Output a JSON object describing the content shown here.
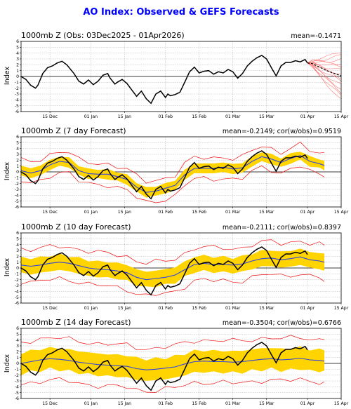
{
  "figure": {
    "suptitle": "AO Index: Observed & GEFS Forecasts",
    "colors": {
      "suptitle": "#0000ff",
      "observed": "#000000",
      "spread": "#ffd400",
      "mean_forecast": "#3344dd",
      "extremes": "#ee1111",
      "ensemble": "#ff5555",
      "grid": "#b0b0b0"
    }
  },
  "chart_data": [
    {
      "type": "line",
      "title": "1000mb Z (Obs: 03Dec2025 - 01Apr2026)",
      "stat": "mean=-0.1471",
      "ylabel": "Index",
      "ylim": [
        -6,
        6
      ],
      "yticks": [
        "6",
        "5",
        "4",
        "3",
        "2",
        "1",
        "0",
        "-1",
        "-2",
        "-3",
        "-4",
        "-5",
        "-6"
      ],
      "xticks": [
        "15 Dec",
        "01 Jan",
        "15 Jan",
        "01 Feb",
        "15 Feb",
        "01 Mar",
        "15 Mar",
        "01 Apr",
        "15 Apr"
      ],
      "grid": true,
      "x_unit": "days from 03 Dec 2025",
      "series": [
        {
          "role": "observed",
          "x": [
            0,
            2,
            4,
            6,
            7,
            9,
            11,
            13,
            15,
            17,
            19,
            21,
            22,
            24,
            26,
            28,
            30,
            32,
            34,
            36,
            37,
            38,
            39,
            40,
            42,
            44,
            46,
            48,
            50,
            52,
            54,
            56,
            58,
            60,
            61,
            62,
            64,
            66,
            68,
            70,
            72,
            74,
            76,
            78,
            80,
            82,
            84,
            86,
            88,
            90,
            92,
            94,
            96,
            98,
            100,
            102,
            104,
            106,
            108,
            110,
            112,
            114,
            116,
            118,
            119
          ],
          "y": [
            0.0,
            -0.5,
            -1.5,
            -2.0,
            -1.5,
            0.5,
            1.5,
            1.8,
            2.3,
            2.6,
            2.0,
            1.0,
            0.5,
            -0.8,
            -1.3,
            -0.6,
            -1.4,
            -0.8,
            0.2,
            0.5,
            -0.3,
            -0.8,
            -1.3,
            -1.0,
            -0.5,
            -1.2,
            -2.3,
            -3.4,
            -2.5,
            -3.8,
            -4.6,
            -3.0,
            -2.5,
            -3.6,
            -3.0,
            -3.3,
            -3.1,
            -2.7,
            -1.0,
            0.8,
            1.6,
            0.6,
            0.9,
            1.0,
            0.4,
            0.8,
            0.6,
            1.2,
            0.8,
            -0.3,
            0.5,
            1.8,
            2.6,
            3.2,
            3.6,
            3.0,
            1.5,
            0.1,
            1.8,
            2.4,
            2.4,
            2.7,
            2.5,
            2.9,
            2.3
          ]
        },
        {
          "role": "ensemble_forecast",
          "x": [
            119,
            121,
            123,
            125,
            127,
            129,
            131,
            133
          ],
          "y": [
            2.3,
            2.2,
            1.8,
            1.4,
            1.0,
            0.7,
            0.4,
            0.1
          ]
        }
      ]
    },
    {
      "type": "line",
      "title": "1000mb Z (7 day Forecast)",
      "stat": "mean=-0.2149; cor(w/obs)=0.9519",
      "ylabel": "Index",
      "ylim": [
        -6,
        6
      ],
      "yticks": [
        "6",
        "5",
        "4",
        "3",
        "2",
        "1",
        "0",
        "-1",
        "-2",
        "-3",
        "-4",
        "-5",
        "-6"
      ],
      "xticks": [
        "15 Dec",
        "01 Jan",
        "15 Jan",
        "01 Feb",
        "15 Feb",
        "01 Mar",
        "15 Mar",
        "01 Apr",
        "15 Apr"
      ],
      "grid": true,
      "x_unit": "days from 03 Dec 2025",
      "forecast_x": [
        0,
        4,
        8,
        12,
        16,
        20,
        24,
        28,
        32,
        36,
        40,
        44,
        48,
        52,
        56,
        60,
        64,
        68,
        72,
        76,
        80,
        84,
        88,
        92,
        96,
        100,
        104,
        108,
        112,
        116,
        120,
        124,
        126
      ],
      "forecast_mean": [
        0.2,
        -0.2,
        0.2,
        1.2,
        1.8,
        1.6,
        0.2,
        -0.3,
        -0.4,
        -0.4,
        -0.8,
        -1.3,
        -2.6,
        -3.5,
        -3.3,
        -2.8,
        -2.3,
        -0.5,
        0.6,
        0.6,
        0.6,
        0.8,
        0.5,
        0.7,
        1.8,
        2.6,
        2.2,
        1.6,
        2.3,
        2.8,
        1.8,
        1.4,
        1.1
      ],
      "spread_half_width": 0.8,
      "extreme_offset": 1.8,
      "observed_x": [
        0,
        2,
        4,
        6,
        7,
        9,
        11,
        13,
        15,
        17,
        19,
        21,
        22,
        24,
        26,
        28,
        30,
        32,
        34,
        36,
        37,
        38,
        39,
        40,
        42,
        44,
        46,
        48,
        50,
        52,
        54,
        56,
        58,
        60,
        61,
        62,
        64,
        66,
        68,
        70,
        72,
        74,
        76,
        78,
        80,
        82,
        84,
        86,
        88,
        90,
        92,
        94,
        96,
        98,
        100,
        102,
        104,
        106,
        108,
        110,
        112,
        114,
        116,
        118,
        119
      ],
      "observed_y": [
        0.0,
        -0.5,
        -1.5,
        -2.0,
        -1.5,
        0.5,
        1.5,
        1.8,
        2.3,
        2.6,
        2.0,
        1.0,
        0.5,
        -0.8,
        -1.3,
        -0.6,
        -1.4,
        -0.8,
        0.2,
        0.5,
        -0.3,
        -0.8,
        -1.3,
        -1.0,
        -0.5,
        -1.2,
        -2.3,
        -3.4,
        -2.5,
        -3.8,
        -4.6,
        -3.0,
        -2.5,
        -3.6,
        -3.0,
        -3.3,
        -3.1,
        -2.7,
        -1.0,
        0.8,
        1.6,
        0.6,
        0.9,
        1.0,
        0.4,
        0.8,
        0.6,
        1.2,
        0.8,
        -0.3,
        0.5,
        1.8,
        2.6,
        3.2,
        3.6,
        3.0,
        1.5,
        0.1,
        1.8,
        2.4,
        2.4,
        2.7,
        2.5,
        2.9,
        2.3
      ]
    },
    {
      "type": "line",
      "title": "1000mb Z (10 day Forecast)",
      "stat": "mean=-0.2111; cor(w/obs)=0.8397",
      "ylabel": "Index",
      "ylim": [
        -6,
        6
      ],
      "yticks": [
        "6",
        "5",
        "4",
        "3",
        "2",
        "1",
        "0",
        "-1",
        "-2",
        "-3",
        "-4",
        "-5",
        "-6"
      ],
      "xticks": [
        "15 Dec",
        "01 Jan",
        "15 Jan",
        "01 Feb",
        "15 Feb",
        "01 Mar",
        "15 Mar",
        "01 Apr",
        "15 Apr"
      ],
      "grid": true,
      "x_unit": "days from 03 Dec 2025",
      "forecast_x": [
        0,
        4,
        8,
        12,
        16,
        20,
        24,
        28,
        32,
        36,
        40,
        44,
        48,
        52,
        56,
        60,
        64,
        68,
        72,
        76,
        80,
        84,
        88,
        92,
        96,
        100,
        104,
        108,
        112,
        116,
        120,
        124,
        126
      ],
      "forecast_mean": [
        0.5,
        0.3,
        0.5,
        0.8,
        1.0,
        0.8,
        0.4,
        0.0,
        -0.2,
        -0.3,
        -0.5,
        -0.8,
        -1.6,
        -2.0,
        -1.8,
        -1.6,
        -1.2,
        -0.3,
        0.6,
        0.8,
        0.6,
        0.6,
        0.5,
        0.7,
        1.2,
        1.6,
        1.7,
        1.4,
        1.6,
        1.9,
        1.4,
        1.2,
        1.0
      ],
      "spread_half_width": 1.3,
      "extreme_offset": 2.8,
      "observed_x": [
        0,
        2,
        4,
        6,
        7,
        9,
        11,
        13,
        15,
        17,
        19,
        21,
        22,
        24,
        26,
        28,
        30,
        32,
        34,
        36,
        37,
        38,
        39,
        40,
        42,
        44,
        46,
        48,
        50,
        52,
        54,
        56,
        58,
        60,
        61,
        62,
        64,
        66,
        68,
        70,
        72,
        74,
        76,
        78,
        80,
        82,
        84,
        86,
        88,
        90,
        92,
        94,
        96,
        98,
        100,
        102,
        104,
        106,
        108,
        110,
        112,
        114,
        116,
        118,
        119
      ],
      "observed_y": [
        0.0,
        -0.5,
        -1.5,
        -2.0,
        -1.5,
        0.5,
        1.5,
        1.8,
        2.3,
        2.6,
        2.0,
        1.0,
        0.5,
        -0.8,
        -1.3,
        -0.6,
        -1.4,
        -0.8,
        0.2,
        0.5,
        -0.3,
        -0.8,
        -1.3,
        -1.0,
        -0.5,
        -1.2,
        -2.3,
        -3.4,
        -2.5,
        -3.8,
        -4.6,
        -3.0,
        -2.5,
        -3.6,
        -3.0,
        -3.3,
        -3.1,
        -2.7,
        -1.0,
        0.8,
        1.6,
        0.6,
        0.9,
        1.0,
        0.4,
        0.8,
        0.6,
        1.2,
        0.8,
        -0.3,
        0.5,
        1.8,
        2.6,
        3.2,
        3.6,
        3.0,
        1.5,
        0.1,
        1.8,
        2.4,
        2.4,
        2.7,
        2.5,
        2.9,
        2.3
      ]
    },
    {
      "type": "line",
      "title": "1000mb Z (14 day Forecast)",
      "stat": "mean=-0.3504; cor(w/obs)=0.6766",
      "ylabel": "Index",
      "ylim": [
        -6,
        6
      ],
      "yticks": [
        "6",
        "5",
        "4",
        "3",
        "2",
        "1",
        "0",
        "-1",
        "-2",
        "-3",
        "-4",
        "-5",
        "-6"
      ],
      "xticks": [
        "15 Dec",
        "01 Jan",
        "15 Jan",
        "01 Feb",
        "15 Feb",
        "01 Mar",
        "15 Mar",
        "01 Apr",
        "15 Apr"
      ],
      "grid": true,
      "x_unit": "days from 03 Dec 2025",
      "forecast_x": [
        0,
        4,
        8,
        12,
        16,
        20,
        24,
        28,
        32,
        36,
        40,
        44,
        48,
        52,
        56,
        60,
        64,
        68,
        72,
        76,
        80,
        84,
        88,
        92,
        96,
        100,
        104,
        108,
        112,
        116,
        120,
        124,
        126
      ],
      "forecast_mean": [
        0.0,
        0.3,
        0.6,
        0.8,
        0.7,
        0.5,
        0.2,
        0.0,
        -0.2,
        -0.3,
        -0.4,
        -0.5,
        -0.9,
        -1.1,
        -1.0,
        -0.8,
        -0.6,
        -0.1,
        0.3,
        0.4,
        0.3,
        0.3,
        0.2,
        0.3,
        0.5,
        0.7,
        0.8,
        0.6,
        0.7,
        0.9,
        0.6,
        0.5,
        0.4
      ],
      "spread_half_width": 1.8,
      "extreme_offset": 3.6,
      "observed_x": [
        0,
        2,
        4,
        6,
        7,
        9,
        11,
        13,
        15,
        17,
        19,
        21,
        22,
        24,
        26,
        28,
        30,
        32,
        34,
        36,
        37,
        38,
        39,
        40,
        42,
        44,
        46,
        48,
        50,
        52,
        54,
        56,
        58,
        60,
        61,
        62,
        64,
        66,
        68,
        70,
        72,
        74,
        76,
        78,
        80,
        82,
        84,
        86,
        88,
        90,
        92,
        94,
        96,
        98,
        100,
        102,
        104,
        106,
        108,
        110,
        112,
        114,
        116,
        118,
        119
      ],
      "observed_y": [
        0.0,
        -0.5,
        -1.5,
        -2.0,
        -1.5,
        0.5,
        1.5,
        1.8,
        2.3,
        2.6,
        2.0,
        1.0,
        0.5,
        -0.8,
        -1.3,
        -0.6,
        -1.4,
        -0.8,
        0.2,
        0.5,
        -0.3,
        -0.8,
        -1.3,
        -1.0,
        -0.5,
        -1.2,
        -2.3,
        -3.4,
        -2.5,
        -3.8,
        -4.6,
        -3.0,
        -2.5,
        -3.6,
        -3.0,
        -3.3,
        -3.1,
        -2.7,
        -1.0,
        0.8,
        1.6,
        0.6,
        0.9,
        1.0,
        0.4,
        0.8,
        0.6,
        1.2,
        0.8,
        -0.3,
        0.5,
        1.8,
        2.6,
        3.2,
        3.6,
        3.0,
        1.5,
        0.1,
        1.8,
        2.4,
        2.4,
        2.7,
        2.5,
        2.9,
        2.3
      ]
    }
  ]
}
